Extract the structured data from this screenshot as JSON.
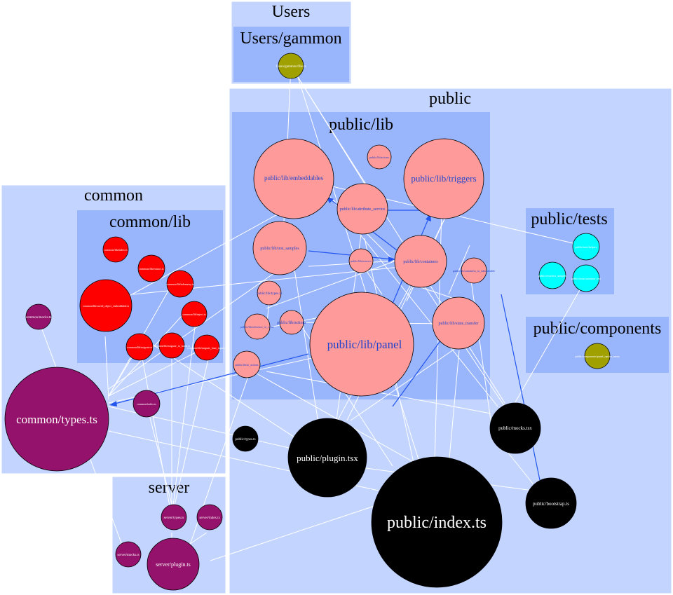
{
  "colors": {
    "cluster_outer": "#c3d5ff",
    "cluster_inner": "#99b5fb",
    "node_lib": "#ff9a9a",
    "node_common_lib": "#ff0000",
    "node_ts": "#94126b",
    "node_public": "#000000",
    "node_test": "#00ffff",
    "node_olive": "#a0a000",
    "edge": "#ffffff",
    "edge_dep": "#2255ee",
    "label_blue": "#2244cc"
  },
  "clusters": {
    "users": "Users",
    "users_gammon": "Users/gammon",
    "public": "public",
    "public_lib": "public/lib",
    "public_tests": "public/tests",
    "public_components": "public/components",
    "common": "common",
    "common_lib": "common/lib",
    "server": "server"
  },
  "nodes": {
    "users_gammon_file": "Users/gammon/file.ts",
    "lib_embeddables": "public/lib/embeddables",
    "lib_triggers": "public/lib/triggers",
    "lib_actions_small": "public/lib/actions",
    "lib_attribute_service": "public/lib/attribute_service",
    "lib_test_samples": "public/lib/test_samples",
    "lib_containers": "public/lib/containers",
    "lib_errors": "public/lib/errors.ts",
    "lib_types": "public/lib/types.ts",
    "lib_with_subs": "public/lib/containers_to_subscribable",
    "lib_state_transfer": "public/lib/state_transfer",
    "lib_actions": "public/lib/actions",
    "lib_panel": "public/lib/panel",
    "lib_reference_or_value": "public/lib/reference_or_value",
    "lib_ui_actions": "public/lib/ui_actions",
    "lib_helpers": "public/lib/helpers",
    "tests_a": "public/tests/helpers",
    "tests_b": "public/tests/test_samples",
    "tests_c": "public/tests/container_test",
    "components_node": "public/components/panel_option_menu",
    "public_types": "public/types.ts",
    "public_plugin": "public/plugin.tsx",
    "public_mocks": "public/mocks.tsx",
    "public_index": "public/index.ts",
    "public_bootstrap": "public/bootstrap.ts",
    "common_mocks": "common/mocks.ts",
    "common_types": "common/types.ts",
    "common_index": "common/index.ts",
    "cl_index": "common/lib/index.ts",
    "cl_extract": "common/lib/extract.ts",
    "cl_saved_object": "common/lib/saved_object_embeddable.ts",
    "cl_telemetry": "common/lib/telemetry.ts",
    "cl_inject": "common/lib/inject.ts",
    "cl_migrate": "common/lib/migrate.ts",
    "cl_migrate_to_latest": "common/lib/migrate_to_latest.ts",
    "cl_migrate_base": "common/lib/migrate_base_input.ts",
    "server_types": "server/types.ts",
    "server_index": "server/index.ts",
    "server_mocks": "server/mocks.ts",
    "server_plugin": "server/plugin.ts"
  }
}
